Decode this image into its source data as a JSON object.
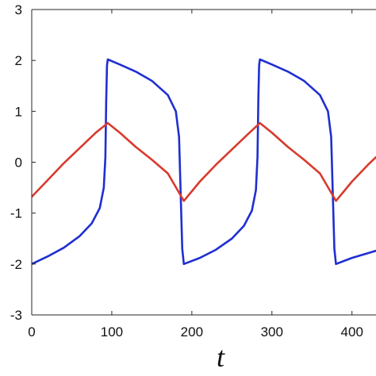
{
  "chart_data": {
    "type": "line",
    "title": "",
    "xlabel": "t",
    "ylabel": "",
    "xlim": [
      0,
      430
    ],
    "ylim": [
      -3,
      3
    ],
    "xticks": [
      0,
      100,
      200,
      300,
      400
    ],
    "xtick_labels": [
      "0",
      "100",
      "200",
      "300",
      "400"
    ],
    "yticks": [
      -3,
      -2,
      -1,
      0,
      1,
      2,
      3
    ],
    "ytick_labels": [
      "-3",
      "-2",
      "-1",
      "0",
      "1",
      "2",
      "3"
    ],
    "grid": false,
    "legend": "none",
    "series": [
      {
        "color": "#1f2fd0",
        "x": [
          0,
          20,
          40,
          60,
          75,
          85,
          90,
          92,
          93,
          94,
          95,
          110,
          130,
          150,
          170,
          180,
          184,
          186,
          188,
          190,
          210,
          230,
          250,
          265,
          275,
          280,
          282,
          283,
          284,
          285,
          300,
          320,
          340,
          360,
          370,
          374,
          376,
          378,
          380,
          400,
          430
        ],
        "y": [
          -2.0,
          -1.85,
          -1.68,
          -1.45,
          -1.2,
          -0.9,
          -0.5,
          0.1,
          1.2,
          1.9,
          2.02,
          1.92,
          1.78,
          1.6,
          1.32,
          1.0,
          0.5,
          -0.6,
          -1.7,
          -2.0,
          -1.88,
          -1.72,
          -1.5,
          -1.25,
          -0.95,
          -0.55,
          0.1,
          1.2,
          1.9,
          2.02,
          1.92,
          1.78,
          1.6,
          1.32,
          1.0,
          0.5,
          -0.6,
          -1.7,
          -2.0,
          -1.88,
          -1.74
        ]
      },
      {
        "color": "#d83a2e",
        "x": [
          0,
          20,
          40,
          60,
          80,
          95,
          110,
          130,
          150,
          170,
          190,
          210,
          230,
          250,
          270,
          285,
          300,
          320,
          340,
          360,
          380,
          400,
          420,
          430
        ],
        "y": [
          -0.68,
          -0.35,
          -0.02,
          0.28,
          0.58,
          0.77,
          0.58,
          0.3,
          0.05,
          -0.22,
          -0.76,
          -0.38,
          -0.05,
          0.25,
          0.55,
          0.77,
          0.58,
          0.3,
          0.05,
          -0.22,
          -0.76,
          -0.38,
          -0.05,
          0.1
        ]
      }
    ]
  }
}
